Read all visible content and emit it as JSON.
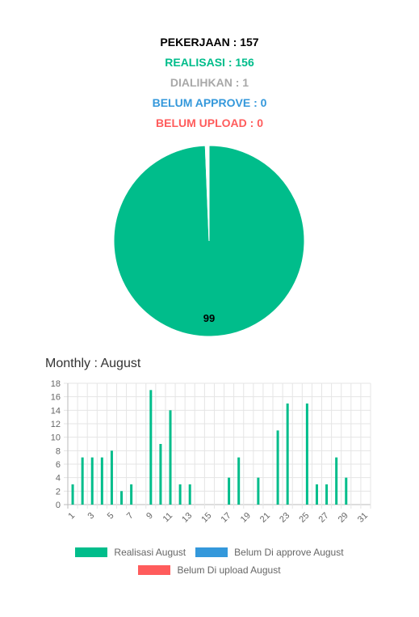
{
  "summary": {
    "pekerjaan": "PEKERJAAN : 157",
    "realisasi": "REALISASI : 156",
    "dialihkan": "DIALIHKAN : 1",
    "belum_approve": "BELUM APPROVE : 0",
    "belum_upload": "BELUM UPLOAD : 0"
  },
  "colors": {
    "pekerjaan": "#000000",
    "realisasi": "#00bd8b",
    "dialihkan": "#a8a8a8",
    "belum_approve": "#3498db",
    "belum_upload": "#ff5c5c"
  },
  "monthly_title": "Monthly : August",
  "chart_data": [
    {
      "type": "pie",
      "slices": [
        {
          "value": 156,
          "color": "#00bd8b"
        },
        {
          "value": 1,
          "color": "#ffffff"
        }
      ],
      "data_label": "99"
    },
    {
      "type": "bar",
      "categories": [
        "1",
        "2",
        "3",
        "4",
        "5",
        "6",
        "7",
        "8",
        "9",
        "10",
        "11",
        "12",
        "13",
        "14",
        "15",
        "16",
        "17",
        "18",
        "19",
        "20",
        "21",
        "22",
        "23",
        "24",
        "25",
        "26",
        "27",
        "28",
        "29",
        "30",
        "31"
      ],
      "x_tick_labels": [
        "1",
        "3",
        "5",
        "7",
        "9",
        "11",
        "13",
        "15",
        "17",
        "19",
        "21",
        "23",
        "25",
        "27",
        "29",
        "31"
      ],
      "series": [
        {
          "name": "Realisasi August",
          "color": "#00bd8b",
          "values": [
            3,
            7,
            7,
            7,
            8,
            2,
            3,
            0,
            17,
            9,
            14,
            3,
            3,
            0,
            0,
            0,
            4,
            7,
            0,
            4,
            0,
            11,
            15,
            0,
            15,
            3,
            3,
            7,
            4,
            0,
            0
          ]
        },
        {
          "name": "Belum Di approve August",
          "color": "#3498db",
          "values": [
            0,
            0,
            0,
            0,
            0,
            0,
            0,
            0,
            0,
            0,
            0,
            0,
            0,
            0,
            0,
            0,
            0,
            0,
            0,
            0,
            0,
            0,
            0,
            0,
            0,
            0,
            0,
            0,
            0,
            0,
            0
          ]
        },
        {
          "name": "Belum Di upload August",
          "color": "#ff5c5c",
          "values": [
            0,
            0,
            0,
            0,
            0,
            0,
            0,
            0,
            0,
            0,
            0,
            0,
            0,
            0,
            0,
            0,
            0,
            0,
            0,
            0,
            0,
            0,
            0,
            0,
            0,
            0,
            0,
            0,
            0,
            0,
            0
          ]
        }
      ],
      "ylim": [
        0,
        18
      ],
      "y_ticks": [
        "0",
        "2",
        "4",
        "6",
        "8",
        "10",
        "12",
        "14",
        "16",
        "18"
      ],
      "grid": true,
      "legend": "bottom"
    }
  ]
}
